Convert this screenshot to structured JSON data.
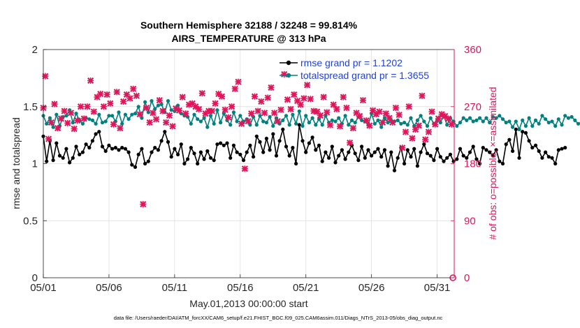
{
  "chart_data": {
    "type": "line",
    "title": "Southern Hemisphere 32188 / 32248 = 99.814%",
    "subtitle": "AIRS_TEMPERATURE @ 313 hPa",
    "xlabel": "May.01,2013 00:00:00 start",
    "ylabel": "rmse and totalspread",
    "y2label": "# of obs: o=possible; ×=assimilated",
    "footer": "data file: /Users/raeder/DAI/ATM_forcXX/CAM6_setup/f.e21.FHIST_BGC.f09_025.CAM6assim.011/Diags_NTrS_2013-05/obs_diag_output.nc",
    "xlim": [
      0,
      31.3
    ],
    "ylim": [
      0,
      2
    ],
    "y2lim": [
      0,
      360
    ],
    "x_ticks": [
      {
        "pos": 0,
        "label": "05/01"
      },
      {
        "pos": 5,
        "label": "05/06"
      },
      {
        "pos": 10,
        "label": "05/11"
      },
      {
        "pos": 15,
        "label": "05/16"
      },
      {
        "pos": 20,
        "label": "05/21"
      },
      {
        "pos": 25,
        "label": "05/26"
      },
      {
        "pos": 30,
        "label": "05/31"
      }
    ],
    "y_ticks": [
      {
        "value": 0,
        "label": "0"
      },
      {
        "value": 0.5,
        "label": "0.5"
      },
      {
        "value": 1,
        "label": "1"
      },
      {
        "value": 1.5,
        "label": "1.5"
      },
      {
        "value": 2,
        "label": "2"
      }
    ],
    "y2_ticks": [
      {
        "value": 0,
        "label": "0"
      },
      {
        "value": 90,
        "label": "90"
      },
      {
        "value": 180,
        "label": "180"
      },
      {
        "value": 270,
        "label": "270"
      },
      {
        "value": 360,
        "label": "360"
      }
    ],
    "x_start": 0.0,
    "x_step": 0.25,
    "series": [
      {
        "name": "rmse grand pr = 1.1202",
        "color": "#000000",
        "values": [
          1.24,
          1.02,
          1.2,
          1.03,
          1.18,
          1.07,
          1.05,
          1.13,
          1.01,
          1.05,
          1.15,
          1.08,
          1.1,
          1.17,
          1.14,
          1.2,
          1.26,
          1.28,
          1.15,
          1.11,
          1.16,
          1.13,
          1.14,
          1.12,
          1.14,
          1.13,
          1.1,
          0.99,
          0.97,
          1.08,
          1.13,
          1.0,
          1.02,
          1.1,
          1.14,
          1.12,
          1.2,
          1.28,
          1.19,
          1.06,
          1.13,
          1.08,
          1.17,
          1.0,
          1.04,
          1.14,
          1.09,
          1.0,
          1.1,
          1.04,
          1.11,
          1.05,
          1.03,
          1.17,
          1.18,
          1.16,
          1.18,
          1.05,
          1.16,
          1.1,
          1.08,
          1.03,
          1.1,
          1.16,
          1.06,
          1.24,
          1.19,
          1.1,
          1.22,
          1.12,
          1.26,
          1.07,
          1.2,
          1.3,
          1.15,
          1.07,
          1.14,
          1.0,
          1.34,
          1.2,
          1.1,
          1.18,
          1.23,
          1.12,
          1.16,
          1.02,
          1.1,
          1.05,
          1.15,
          1.01,
          1.07,
          1.12,
          1.04,
          1.1,
          1.16,
          1.09,
          1.03,
          1.15,
          1.05,
          1.12,
          1.07,
          1.1,
          1.13,
          1.06,
          1.12,
          0.98,
          1.1,
          0.94,
          1.05,
          1.14,
          1.0,
          1.12,
          1.06,
          1.13,
          0.98,
          1.1,
          1.17,
          1.09,
          1.07,
          1.03,
          1.13,
          1.06,
          1.02,
          1.05,
          1.08,
          1.02,
          1.04,
          1.13,
          1.07,
          1.05,
          1.1,
          1.15,
          1.04,
          1.0,
          1.14,
          1.12,
          1.1,
          1.07,
          1.12,
          1.02,
          1.0,
          1.17,
          1.21,
          1.11,
          1.3,
          1.05,
          1.28,
          1.27,
          1.2,
          1.14,
          1.16,
          1.11,
          1.05,
          1.1,
          1.06,
          1.05,
          1.0,
          1.12,
          1.13,
          1.14
        ]
      },
      {
        "name": "totalspread grand pr = 1.3655",
        "color": "#00807f",
        "values": [
          1.42,
          1.35,
          1.4,
          1.32,
          1.43,
          1.33,
          1.41,
          1.42,
          1.47,
          1.36,
          1.44,
          1.38,
          1.35,
          1.4,
          1.39,
          1.38,
          1.35,
          1.43,
          1.36,
          1.37,
          1.42,
          1.42,
          1.37,
          1.45,
          1.35,
          1.43,
          1.39,
          1.43,
          1.44,
          1.5,
          1.4,
          1.54,
          1.45,
          1.55,
          1.48,
          1.51,
          1.52,
          1.45,
          1.55,
          1.47,
          1.46,
          1.51,
          1.44,
          1.42,
          1.41,
          1.35,
          1.43,
          1.39,
          1.37,
          1.4,
          1.32,
          1.42,
          1.35,
          1.47,
          1.36,
          1.44,
          1.38,
          1.34,
          1.45,
          1.37,
          1.42,
          1.37,
          1.39,
          1.34,
          1.41,
          1.34,
          1.42,
          1.37,
          1.36,
          1.41,
          1.33,
          1.4,
          1.35,
          1.38,
          1.42,
          1.34,
          1.43,
          1.35,
          1.46,
          1.33,
          1.42,
          1.36,
          1.4,
          1.34,
          1.39,
          1.34,
          1.42,
          1.36,
          1.38,
          1.37,
          1.4,
          1.35,
          1.42,
          1.34,
          1.38,
          1.36,
          1.41,
          1.38,
          1.37,
          1.34,
          1.44,
          1.35,
          1.38,
          1.32,
          1.4,
          1.36,
          1.38,
          1.37,
          1.38,
          1.35,
          1.36,
          1.34,
          1.4,
          1.33,
          1.38,
          1.42,
          1.37,
          1.33,
          1.4,
          1.35,
          1.38,
          1.36,
          1.42,
          1.34,
          1.4,
          1.37,
          1.33,
          1.36,
          1.4,
          1.38,
          1.4,
          1.37,
          1.38,
          1.4,
          1.37,
          1.4,
          1.36,
          1.41,
          1.4,
          1.42,
          1.39,
          1.36,
          1.37,
          1.32,
          1.37,
          1.3,
          1.38,
          1.33,
          1.4,
          1.33,
          1.38,
          1.35,
          1.42,
          1.39,
          1.36,
          1.37,
          1.33,
          1.39,
          1.34,
          1.42,
          1.4,
          1.41,
          1.38,
          1.35,
          1.36
        ]
      }
    ],
    "obs_possible": {
      "name": "# of obs possible",
      "color": "#e0155a",
      "marker": "o",
      "points": [
        [
          31.2,
          0
        ]
      ]
    },
    "obs_assimilated": {
      "name": "# of obs assimilated",
      "color": "#e0155a",
      "marker": "x",
      "points": [
        [
          0,
          268
        ],
        [
          0.15,
          318
        ],
        [
          0.4,
          219
        ],
        [
          0.6,
          245
        ],
        [
          0.85,
          274
        ],
        [
          1.1,
          236
        ],
        [
          1.35,
          251
        ],
        [
          1.6,
          263
        ],
        [
          1.85,
          244
        ],
        [
          2.1,
          260
        ],
        [
          2.35,
          235
        ],
        [
          2.6,
          248
        ],
        [
          2.85,
          270
        ],
        [
          3.1,
          251
        ],
        [
          3.35,
          270
        ],
        [
          3.6,
          311
        ],
        [
          3.85,
          262
        ],
        [
          4.1,
          285
        ],
        [
          4.35,
          290
        ],
        [
          4.6,
          270
        ],
        [
          4.85,
          289
        ],
        [
          5.1,
          275
        ],
        [
          5.35,
          242
        ],
        [
          5.6,
          293
        ],
        [
          5.85,
          236
        ],
        [
          6.1,
          278
        ],
        [
          6.35,
          289
        ],
        [
          6.6,
          283
        ],
        [
          6.85,
          298
        ],
        [
          7.1,
          287
        ],
        [
          7.35,
          258
        ],
        [
          7.6,
          116
        ],
        [
          7.85,
          268
        ],
        [
          8.1,
          245
        ],
        [
          8.35,
          260
        ],
        [
          8.6,
          250
        ],
        [
          8.85,
          280
        ],
        [
          9.1,
          263
        ],
        [
          9.35,
          245
        ],
        [
          9.6,
          256
        ],
        [
          9.85,
          239
        ],
        [
          10.1,
          267
        ],
        [
          10.35,
          264
        ],
        [
          10.6,
          285
        ],
        [
          10.85,
          259
        ],
        [
          11.1,
          273
        ],
        [
          11.35,
          275
        ],
        [
          11.6,
          270
        ],
        [
          11.85,
          266
        ],
        [
          12.1,
          291
        ],
        [
          12.35,
          259
        ],
        [
          12.6,
          263
        ],
        [
          12.85,
          263
        ],
        [
          13.1,
          275
        ],
        [
          13.35,
          290
        ],
        [
          13.6,
          286
        ],
        [
          13.85,
          265
        ],
        [
          14.1,
          253
        ],
        [
          14.35,
          270
        ],
        [
          14.6,
          298
        ],
        [
          14.85,
          309
        ],
        [
          15.1,
          243
        ],
        [
          15.35,
          172
        ],
        [
          15.6,
          247
        ],
        [
          15.85,
          259
        ],
        [
          16.1,
          286
        ],
        [
          16.35,
          263
        ],
        [
          16.6,
          278
        ],
        [
          16.85,
          260
        ],
        [
          17.1,
          284
        ],
        [
          17.35,
          300
        ],
        [
          17.6,
          260
        ],
        [
          17.85,
          247
        ],
        [
          18.1,
          265
        ],
        [
          18.35,
          321
        ],
        [
          18.6,
          281
        ],
        [
          18.85,
          266
        ],
        [
          19.1,
          289
        ],
        [
          19.35,
          279
        ],
        [
          19.6,
          273
        ],
        [
          19.85,
          283
        ],
        [
          20.1,
          304
        ],
        [
          20.35,
          282
        ],
        [
          20.6,
          263
        ],
        [
          20.85,
          262
        ],
        [
          21.1,
          256
        ],
        [
          21.35,
          285
        ],
        [
          21.6,
          261
        ],
        [
          21.85,
          241
        ],
        [
          22.1,
          273
        ],
        [
          22.35,
          266
        ],
        [
          22.6,
          239
        ],
        [
          22.85,
          285
        ],
        [
          23.1,
          268
        ],
        [
          23.35,
          213
        ],
        [
          23.6,
          236
        ],
        [
          23.85,
          260
        ],
        [
          24.1,
          255
        ],
        [
          24.35,
          280
        ],
        [
          24.6,
          248
        ],
        [
          24.85,
          240
        ],
        [
          25.1,
          264
        ],
        [
          25.35,
          258
        ],
        [
          25.6,
          262
        ],
        [
          25.85,
          245
        ],
        [
          26.1,
          259
        ],
        [
          26.35,
          252
        ],
        [
          26.6,
          245
        ],
        [
          26.85,
          268
        ],
        [
          27.1,
          257
        ],
        [
          27.35,
          205
        ],
        [
          27.6,
          230
        ],
        [
          27.85,
          270
        ],
        [
          28.1,
          220
        ],
        [
          28.35,
          234
        ],
        [
          28.6,
          240
        ],
        [
          28.85,
          287
        ],
        [
          29.1,
          218
        ],
        [
          29.35,
          230
        ],
        [
          29.6,
          262
        ],
        [
          29.85,
          242
        ],
        [
          30.1,
          251
        ],
        [
          30.35,
          258
        ],
        [
          30.6,
          255
        ],
        [
          30.85,
          251
        ],
        [
          31.1,
          242
        ]
      ]
    }
  }
}
